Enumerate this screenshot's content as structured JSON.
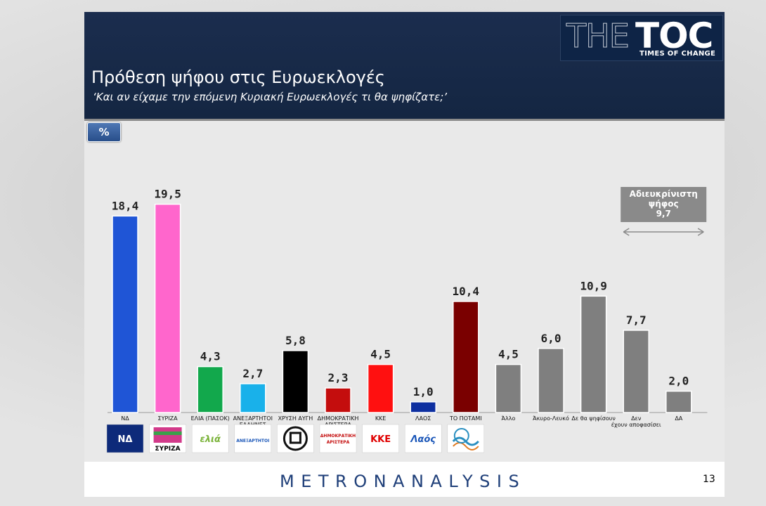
{
  "header": {
    "title": "Πρόθεση ψήφου στις Ευρωεκλογές",
    "subtitle": "‘Και αν είχαμε την επόμενη Κυριακή Ευρωεκλογές τι θα ψηφίζατε;’",
    "logo_the": "THE",
    "logo_toc": "TOC",
    "logo_tagline": "TIMES OF CHANGE"
  },
  "unit_badge": "%",
  "footer": {
    "brand": "METRONANALYSIS",
    "page_number": "13"
  },
  "chart_data": {
    "type": "bar",
    "title": "",
    "xlabel": "",
    "ylabel": "",
    "ylim": [
      0,
      21
    ],
    "grid": false,
    "categories": [
      "ΝΔ",
      "ΣΥΡΙΖΑ",
      "ΕΛΙΑ (ΠΑΣΟΚ)",
      "ΑΝΕΞΑΡΤΗΤΟΙ ΕΛΛΗΝΕΣ",
      "ΧΡΥΣΗ ΑΥΓΗ",
      "ΔΗΜΟΚΡΑΤΙΚΗ ΑΡΙΣΤΕΡΑ",
      "ΚΚΕ",
      "ΛΑΟΣ",
      "ΤΟ ΠΟΤΑΜΙ",
      "Άλλο",
      "Άκυρο-Λευκό",
      "Δε θα ψηφίσουν",
      "Δεν έχουν αποφασίσει",
      "ΔΑ"
    ],
    "values": [
      18.4,
      19.5,
      4.3,
      2.7,
      5.8,
      2.3,
      4.5,
      1.0,
      10.4,
      4.5,
      6.0,
      10.9,
      7.7,
      2.0
    ],
    "value_labels": [
      "18,4",
      "19,5",
      "4,3",
      "2,7",
      "5,8",
      "2,3",
      "4,5",
      "1,0",
      "10,4",
      "4,5",
      "6,0",
      "10,9",
      "7,7",
      "2,0"
    ],
    "colors": [
      "#1f55d6",
      "#ff66cc",
      "#12a84c",
      "#19b1ea",
      "#000000",
      "#c40d0d",
      "#ff1010",
      "#0d2fa0",
      "#7a0000",
      "#7f7f7f",
      "#7f7f7f",
      "#7f7f7f",
      "#7f7f7f",
      "#7f7f7f"
    ],
    "party_logos": [
      {
        "name": "nd-logo",
        "text": "ΝΔ",
        "bg": "#0d2a7a",
        "fg": "#ffffff"
      },
      {
        "name": "syriza-logo",
        "text": "ΣΥΡΙΖΑ",
        "bg": "#ffffff",
        "fg": "#000000"
      },
      {
        "name": "elia-logo",
        "text": "ελιά",
        "bg": "#ffffff",
        "fg": "#7bb33a"
      },
      {
        "name": "anel-logo",
        "text": "ΑΝΕΞΑΡΤΗΤΟΙ",
        "bg": "#ffffff",
        "fg": "#1a56b8"
      },
      {
        "name": "xa-logo",
        "text": "",
        "bg": "#ffffff",
        "fg": "#000000"
      },
      {
        "name": "dimar-logo",
        "text": "ΔΗΜΟΚΡΑΤΙΚΗ ΑΡΙΣΤΕΡΑ",
        "bg": "#ffffff",
        "fg": "#c40d0d"
      },
      {
        "name": "kke-logo",
        "text": "ΚΚΕ",
        "bg": "#ffffff",
        "fg": "#e00000"
      },
      {
        "name": "laos-logo",
        "text": "Λαός",
        "bg": "#ffffff",
        "fg": "#1a56b8"
      },
      {
        "name": "potami-logo",
        "text": "",
        "bg": "#ffffff",
        "fg": "#2a8fc0"
      }
    ],
    "annotation": {
      "lines": [
        "Αδιευκρίνιστη",
        "ψήφος",
        "9,7"
      ],
      "value": 9.7,
      "bg": "#8a8a8a"
    }
  }
}
